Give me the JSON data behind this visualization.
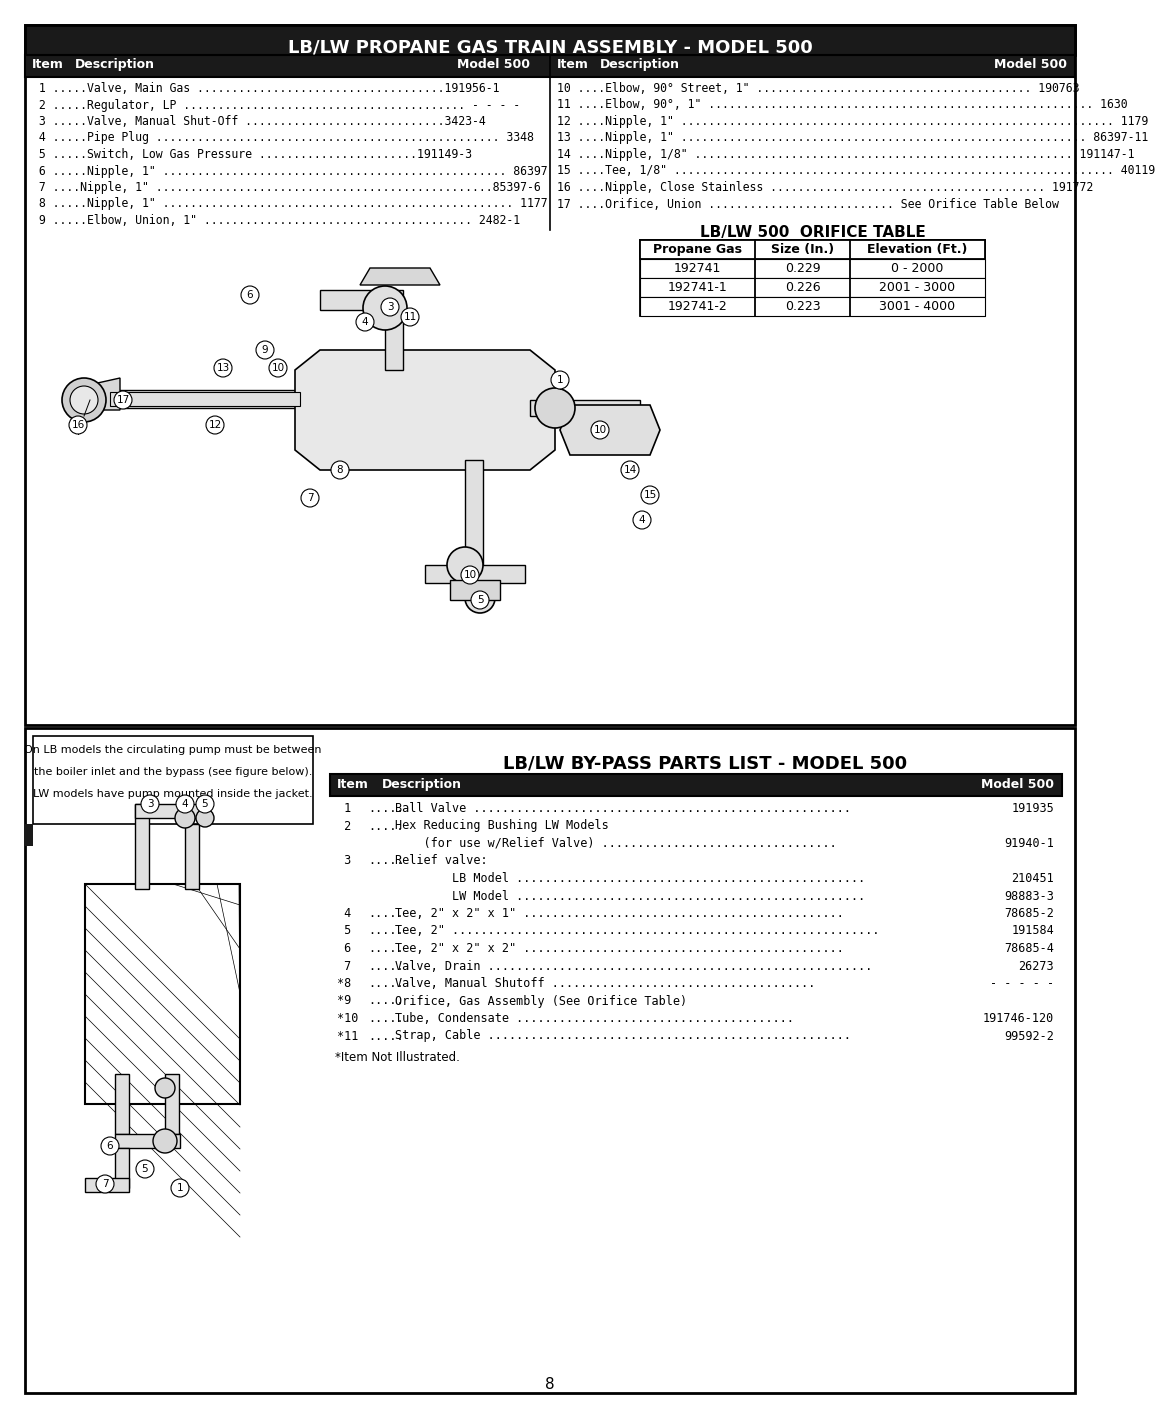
{
  "page_title": "LB/LW PROPANE GAS TRAIN ASSEMBLY - MODEL 500",
  "col_hdr_left_item": "Item",
  "col_hdr_left_desc": "Description",
  "col_hdr_left_model": "Model 500",
  "col_hdr_right_item": "Item",
  "col_hdr_right_desc": "Description",
  "col_hdr_right_model": "Model 500",
  "parts_left": [
    " 1 .....Valve, Main Gas ....................................191956-1",
    " 2 .....Regulator, LP ......................................... - - - -",
    " 3 .....Valve, Manual Shut-Off .............................3423-4",
    " 4 .....Pipe Plug .................................................. 3348",
    " 5 .....Switch, Low Gas Pressure .......................191149-3",
    " 6 .....Nipple, 1\" .................................................. 86397",
    " 7 ....Nipple, 1\" .................................................85397-6",
    " 8 .....Nipple, 1\" ................................................... 1177",
    " 9 .....Elbow, Union, 1\" ....................................... 2482-1"
  ],
  "parts_right": [
    "10 ....Elbow, 90° Street, 1\" ........................................ 190763",
    "11 ....Elbow, 90°, 1\" ........................................................ 1630",
    "12 ....Nipple, 1\" ............................................................... 1179",
    "13 ....Nipple, 1\" ........................................................... 86397-11",
    "14 ....Nipple, 1/8\" ....................................................... 191147-1",
    "15 ....Tee, 1/8\" ................................................................ 40119",
    "16 ....Nipple, Close Stainless ........................................ 191772",
    "17 ....Orifice, Union ........................... See Orifice Table Below"
  ],
  "orifice_title": "LB/LW 500  ORIFICE TABLE",
  "orifice_headers": [
    "Propane Gas",
    "Size (In.)",
    "Elevation (Ft.)"
  ],
  "orifice_rows": [
    [
      "192741",
      "0.229",
      "0 - 2000"
    ],
    [
      "192741-1",
      "0.226",
      "2001 - 3000"
    ],
    [
      "192741-2",
      "0.223",
      "3001 - 4000"
    ]
  ],
  "bypass_title": "LB/LW BY-PASS PARTS LIST - MODEL 500",
  "bypass_col_hdr_item": "Item",
  "bypass_col_hdr_desc": "Description",
  "bypass_col_hdr_model": "Model 500",
  "bypass_parts": [
    {
      "num": " 1",
      "dots": ".....",
      "desc": "Ball Valve .....................................................",
      "model": "191935",
      "indent": false
    },
    {
      "num": " 2",
      "dots": ".....",
      "desc": "Hex Reducing Bushing LW Models",
      "model": "",
      "indent": false
    },
    {
      "num": "",
      "dots": "",
      "desc": "    (for use w/Relief Valve) .................................",
      "model": "91940-1",
      "indent": true
    },
    {
      "num": " 3",
      "dots": ".....",
      "desc": "Relief valve:",
      "model": "",
      "indent": false
    },
    {
      "num": "",
      "dots": "",
      "desc": "        LB Model .................................................",
      "model": "210451",
      "indent": true
    },
    {
      "num": "",
      "dots": "",
      "desc": "        LW Model .................................................",
      "model": "98883-3",
      "indent": true
    },
    {
      "num": " 4",
      "dots": ".....",
      "desc": "Tee, 2\" x 2\" x 1\" .............................................",
      "model": "78685-2",
      "indent": false
    },
    {
      "num": " 5",
      "dots": ".....",
      "desc": "Tee, 2\" ............................................................",
      "model": "191584",
      "indent": false
    },
    {
      "num": " 6",
      "dots": ".....",
      "desc": "Tee, 2\" x 2\" x 2\" .............................................",
      "model": "78685-4",
      "indent": false
    },
    {
      "num": " 7",
      "dots": ".....",
      "desc": "Valve, Drain ......................................................",
      "model": "26273",
      "indent": false
    },
    {
      "num": "*8",
      "dots": ".....",
      "desc": "Valve, Manual Shutoff .....................................",
      "model": "- - - - -",
      "indent": false
    },
    {
      "num": "*9",
      "dots": ".....",
      "desc": "Orifice, Gas Assembly (See Orifice Table)",
      "model": "",
      "indent": false
    },
    {
      "num": "*10",
      "dots": ".....",
      "desc": "Tube, Condensate .......................................",
      "model": "191746-120",
      "indent": false
    },
    {
      "num": "*11",
      "dots": ".....",
      "desc": "Strap, Cable ...................................................",
      "model": "99592-2",
      "indent": false
    }
  ],
  "footnote": "*Item Not Illustrated.",
  "page_number": "8",
  "bypass_note_lines": [
    "On LB models the circulating pump must be between",
    "the boiler inlet and the bypass (see figure below).",
    "LW models have pump mounted inside the jacket."
  ]
}
